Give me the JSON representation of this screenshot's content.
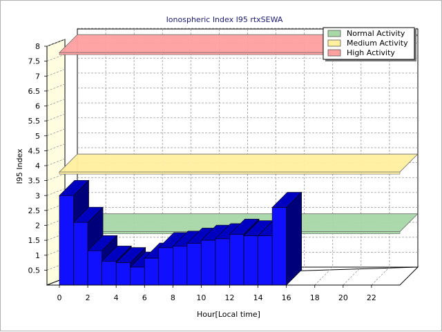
{
  "chart_data": {
    "type": "bar",
    "title": "Ionospheric Index I95 rtxSEWA",
    "xlabel": "Hour[Local time]",
    "ylabel": "I95 Index",
    "xlim": [
      0,
      24
    ],
    "ylim": [
      0,
      8
    ],
    "x_ticks": [
      "0",
      "2",
      "4",
      "6",
      "8",
      "10",
      "12",
      "14",
      "16",
      "18",
      "20",
      "22"
    ],
    "y_ticks": [
      "0.5",
      "1",
      "1.5",
      "2",
      "2.5",
      "3",
      "3.5",
      "4",
      "4.5",
      "5",
      "5.5",
      "6",
      "6.5",
      "7",
      "7.5",
      "8"
    ],
    "grid": true,
    "legend_position": "top-right",
    "bands": [
      {
        "name": "Normal Activity",
        "from": 1.95,
        "to": 2.05,
        "color": "#a8d8a8"
      },
      {
        "name": "Medium Activity",
        "from": 3.95,
        "to": 4.05,
        "color": "#fff0a0"
      },
      {
        "name": "High Activity",
        "from": 7.95,
        "to": 8.05,
        "color": "#ffa0a0"
      }
    ],
    "bar_color": "#1010ff",
    "bar_side_color": "#00007a",
    "bar_top_color": "#0000c0",
    "x": [
      0,
      1,
      2,
      3,
      4,
      5,
      6,
      7,
      8,
      9,
      10,
      11,
      12,
      13,
      14,
      15
    ],
    "values": [
      3.0,
      2.1,
      1.15,
      0.8,
      0.75,
      0.6,
      0.9,
      1.25,
      1.3,
      1.4,
      1.5,
      1.55,
      1.7,
      1.65,
      1.65,
      2.6
    ]
  }
}
